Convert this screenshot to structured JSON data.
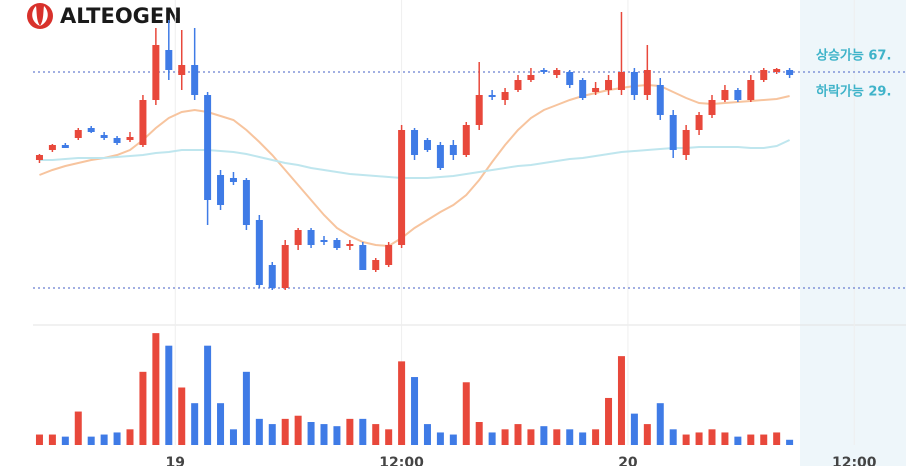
{
  "chart_data": {
    "type": "candlestick",
    "brand": "ALTEOGEN",
    "up_color": "#e8483b",
    "down_color": "#3f7be6",
    "xlim": [
      -0.5,
      67
    ],
    "xticks": [
      {
        "value": 10.5,
        "label": "19"
      },
      {
        "value": 28,
        "label": "12:00"
      },
      {
        "value": 45.5,
        "label": "20"
      },
      {
        "value": 63,
        "label": "12:00"
      }
    ],
    "ylim": [
      0,
      300
    ],
    "volume_ylim": [
      0,
      110
    ],
    "reference_lines": [
      {
        "value": 228,
        "label": "상승가능 67."
      },
      {
        "value": 12
      }
    ],
    "ma_label": {
      "label": "하락가능 29."
    },
    "candles": [
      [
        140,
        146,
        137,
        145
      ],
      [
        150,
        156,
        148,
        155
      ],
      [
        155,
        157,
        152,
        152
      ],
      [
        162,
        172,
        160,
        170
      ],
      [
        172,
        174,
        167,
        168
      ],
      [
        165,
        168,
        160,
        162
      ],
      [
        162,
        164,
        155,
        157
      ],
      [
        160,
        168,
        158,
        163
      ],
      [
        155,
        205,
        153,
        200
      ],
      [
        200,
        272,
        195,
        255
      ],
      [
        250,
        280,
        220,
        230
      ],
      [
        225,
        270,
        210,
        235
      ],
      [
        235,
        272,
        200,
        205
      ],
      [
        205,
        208,
        75,
        100
      ],
      [
        125,
        130,
        90,
        95
      ],
      [
        122,
        128,
        115,
        118
      ],
      [
        120,
        122,
        70,
        75
      ],
      [
        80,
        85,
        12,
        15
      ],
      [
        35,
        38,
        10,
        12
      ],
      [
        12,
        60,
        10,
        55
      ],
      [
        55,
        72,
        50,
        70
      ],
      [
        70,
        72,
        52,
        55
      ],
      [
        60,
        64,
        55,
        58
      ],
      [
        60,
        62,
        50,
        52
      ],
      [
        54,
        60,
        50,
        56
      ],
      [
        55,
        58,
        30,
        30
      ],
      [
        30,
        42,
        28,
        40
      ],
      [
        35,
        58,
        33,
        55
      ],
      [
        55,
        175,
        52,
        170
      ],
      [
        170,
        172,
        140,
        145
      ],
      [
        160,
        162,
        148,
        150
      ],
      [
        155,
        158,
        130,
        132
      ],
      [
        155,
        160,
        140,
        145
      ],
      [
        145,
        178,
        143,
        175
      ],
      [
        175,
        238,
        170,
        205
      ],
      [
        205,
        210,
        200,
        203
      ],
      [
        200,
        212,
        195,
        208
      ],
      [
        210,
        225,
        208,
        220
      ],
      [
        220,
        232,
        218,
        225
      ],
      [
        230,
        232,
        226,
        228
      ],
      [
        225,
        232,
        222,
        230
      ],
      [
        228,
        230,
        212,
        215
      ],
      [
        220,
        222,
        200,
        202
      ],
      [
        208,
        218,
        205,
        212
      ],
      [
        210,
        225,
        205,
        220
      ],
      [
        210,
        288,
        205,
        228
      ],
      [
        228,
        232,
        200,
        205
      ],
      [
        205,
        255,
        200,
        230
      ],
      [
        215,
        222,
        180,
        185
      ],
      [
        185,
        190,
        142,
        150
      ],
      [
        145,
        175,
        140,
        170
      ],
      [
        170,
        188,
        165,
        185
      ],
      [
        185,
        205,
        182,
        200
      ],
      [
        200,
        215,
        198,
        210
      ],
      [
        210,
        212,
        198,
        200
      ],
      [
        200,
        225,
        198,
        220
      ],
      [
        220,
        232,
        218,
        230
      ],
      [
        228,
        232,
        226,
        231
      ],
      [
        230,
        232,
        222,
        225
      ]
    ],
    "volume": [
      10,
      10,
      8,
      32,
      8,
      10,
      12,
      15,
      70,
      107,
      95,
      55,
      40,
      95,
      40,
      15,
      70,
      25,
      20,
      25,
      28,
      22,
      20,
      18,
      25,
      25,
      20,
      15,
      80,
      65,
      20,
      12,
      10,
      60,
      22,
      12,
      15,
      20,
      15,
      18,
      15,
      15,
      12,
      15,
      45,
      85,
      30,
      20,
      40,
      15,
      10,
      12,
      15,
      12,
      8,
      10,
      10,
      12,
      5
    ],
    "ma": [
      {
        "color": "#f7c49e",
        "values": [
          125,
          130,
          134,
          137,
          140,
          142,
          145,
          150,
          160,
          172,
          182,
          188,
          190,
          188,
          184,
          180,
          170,
          158,
          145,
          130,
          115,
          100,
          85,
          72,
          64,
          58,
          55,
          54,
          62,
          72,
          80,
          88,
          95,
          105,
          120,
          138,
          155,
          170,
          182,
          190,
          195,
          200,
          204,
          207,
          210,
          212,
          214,
          215,
          214,
          208,
          202,
          197,
          196,
          197,
          198,
          199,
          200,
          201,
          204
        ]
      },
      {
        "color": "#bfe6ee",
        "values": [
          140,
          140,
          141,
          142,
          142,
          142,
          143,
          144,
          145,
          147,
          148,
          150,
          150,
          150,
          149,
          148,
          146,
          143,
          140,
          137,
          135,
          132,
          130,
          128,
          126,
          125,
          124,
          123,
          122,
          122,
          122,
          123,
          124,
          126,
          128,
          130,
          132,
          134,
          135,
          137,
          139,
          141,
          142,
          144,
          146,
          148,
          149,
          150,
          151,
          152,
          152,
          153,
          153,
          153,
          153,
          152,
          152,
          154,
          160
        ]
      }
    ]
  }
}
